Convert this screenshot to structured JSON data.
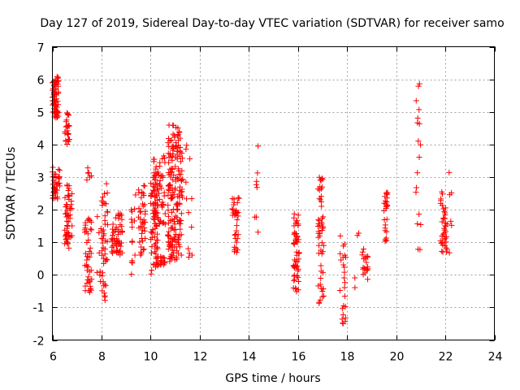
{
  "chart_data": {
    "type": "scatter",
    "title": "Day 127 of 2019, Sidereal Day-to-day VTEC variation (SDTVAR) for receiver samo",
    "xlabel": "GPS time / hours",
    "ylabel": "SDTVAR / TECUs",
    "xlim": [
      6,
      24
    ],
    "ylim": [
      -2,
      7
    ],
    "xticks": [
      6,
      8,
      10,
      12,
      14,
      16,
      18,
      20,
      22,
      24
    ],
    "yticks": [
      -2,
      -1,
      0,
      1,
      2,
      3,
      4,
      5,
      6,
      7
    ],
    "grid": true,
    "marker": "+",
    "color": "#ff0000",
    "clusters": [
      {
        "x": [
          6.0,
          6.25
        ],
        "y": [
          4.8,
          6.1
        ],
        "n": 70
      },
      {
        "x": [
          6.0,
          6.3
        ],
        "y": [
          2.3,
          3.3
        ],
        "n": 40
      },
      {
        "x": [
          6.5,
          6.7
        ],
        "y": [
          4.0,
          5.0
        ],
        "n": 25
      },
      {
        "x": [
          6.5,
          6.8
        ],
        "y": [
          0.8,
          2.8
        ],
        "n": 55
      },
      {
        "x": [
          7.3,
          7.6
        ],
        "y": [
          -0.55,
          1.8
        ],
        "n": 45
      },
      {
        "x": [
          7.4,
          7.6
        ],
        "y": [
          2.7,
          3.3
        ],
        "n": 6
      },
      {
        "x": [
          7.8,
          8.0
        ],
        "y": [
          -0.3,
          2.0
        ],
        "n": 8
      },
      {
        "x": [
          8.0,
          8.25
        ],
        "y": [
          -0.8,
          2.8
        ],
        "n": 45
      },
      {
        "x": [
          8.4,
          8.85
        ],
        "y": [
          0.6,
          1.9
        ],
        "n": 55
      },
      {
        "x": [
          9.2,
          9.4
        ],
        "y": [
          -0.2,
          2.5
        ],
        "n": 15
      },
      {
        "x": [
          9.5,
          9.8
        ],
        "y": [
          0.6,
          2.8
        ],
        "n": 40
      },
      {
        "x": [
          10.0,
          10.3
        ],
        "y": [
          -0.05,
          3.0
        ],
        "n": 70
      },
      {
        "x": [
          10.1,
          10.6
        ],
        "y": [
          1.4,
          3.8
        ],
        "n": 60
      },
      {
        "x": [
          10.3,
          10.6
        ],
        "y": [
          0.3,
          0.6
        ],
        "n": 15
      },
      {
        "x": [
          10.7,
          11.3
        ],
        "y": [
          0.4,
          4.6
        ],
        "n": 190
      },
      {
        "x": [
          11.4,
          11.7
        ],
        "y": [
          0.2,
          4.1
        ],
        "n": 12
      },
      {
        "x": [
          13.3,
          13.6
        ],
        "y": [
          0.5,
          2.4
        ],
        "n": 35
      },
      {
        "x": [
          14.2,
          14.4
        ],
        "y": [
          1.3,
          4.0
        ],
        "n": 8
      },
      {
        "x": [
          15.8,
          16.05
        ],
        "y": [
          -0.55,
          1.9
        ],
        "n": 55
      },
      {
        "x": [
          16.8,
          17.05
        ],
        "y": [
          -0.9,
          3.0
        ],
        "n": 55
      },
      {
        "x": [
          17.7,
          17.95
        ],
        "y": [
          -1.6,
          1.2
        ],
        "n": 25
      },
      {
        "x": [
          18.3,
          18.5
        ],
        "y": [
          -0.75,
          2.3
        ],
        "n": 4
      },
      {
        "x": [
          18.6,
          18.85
        ],
        "y": [
          -0.2,
          0.8
        ],
        "n": 20
      },
      {
        "x": [
          19.5,
          19.65
        ],
        "y": [
          0.9,
          2.6
        ],
        "n": 25
      },
      {
        "x": [
          20.8,
          21.0
        ],
        "y": [
          0.6,
          5.9
        ],
        "n": 18
      },
      {
        "x": [
          21.8,
          22.1
        ],
        "y": [
          0.6,
          2.6
        ],
        "n": 40
      },
      {
        "x": [
          22.1,
          22.3
        ],
        "y": [
          0.6,
          3.15
        ],
        "n": 6
      }
    ]
  }
}
